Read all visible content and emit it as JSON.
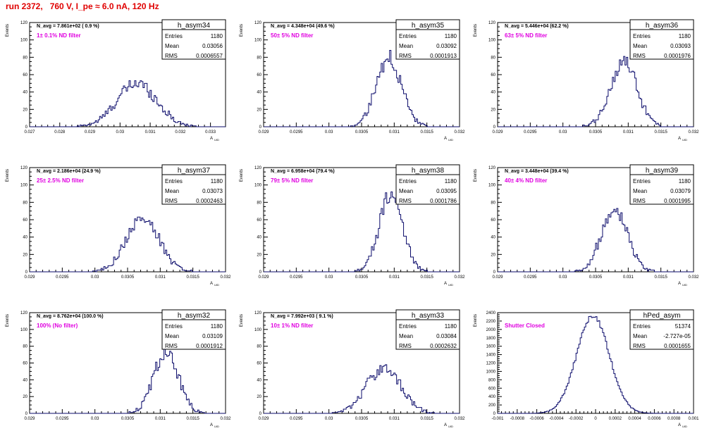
{
  "title": "run 2372,   760 V, I_pe ≈ 6.0 nA, 120 Hz",
  "stats_labels": {
    "entries": "Entries",
    "mean": "Mean",
    "rms": "RMS"
  },
  "colors": {
    "hist": "#0b0b6b",
    "filter_text": "#e000e0",
    "title": "#e00000"
  },
  "chart_data": [
    {
      "type": "histogram",
      "name": "h_asym34",
      "navg": "N_avg = 7.861e+02 ( 0.9 %)",
      "filter": "1± 0.1% ND filter",
      "entries": "1180",
      "mean": "0.03056",
      "rms": "0.0006557",
      "xlabel": "A_UID",
      "ylabel": "Events",
      "xlim": [
        0.027,
        0.0335
      ],
      "ylim": [
        0,
        120
      ],
      "xticks": [
        "0.027",
        "0.028",
        "0.029",
        "0.03",
        "0.031",
        "0.032",
        "0.033"
      ],
      "xtick_values": [
        0.027,
        0.028,
        0.029,
        0.03,
        0.031,
        0.032,
        0.033
      ],
      "yticks": [
        0,
        20,
        40,
        60,
        80,
        100,
        120
      ],
      "center": 0.03056,
      "sigma": 0.00066,
      "peak": 50
    },
    {
      "type": "histogram",
      "name": "h_asym35",
      "navg": "N_avg = 4.348e+04 (49.6 %)",
      "filter": "50± 5% ND filter",
      "entries": "1180",
      "mean": "0.03092",
      "rms": "0.0001913",
      "xlabel": "A_UID",
      "ylabel": "Events",
      "xlim": [
        0.029,
        0.032
      ],
      "ylim": [
        0,
        120
      ],
      "xticks": [
        "0.029",
        "0.0295",
        "0.03",
        "0.0305",
        "0.031",
        "0.0315",
        "0.032"
      ],
      "xtick_values": [
        0.029,
        0.0295,
        0.03,
        0.0305,
        0.031,
        0.0315,
        0.032
      ],
      "yticks": [
        0,
        20,
        40,
        60,
        80,
        100,
        120
      ],
      "center": 0.03092,
      "sigma": 0.00019,
      "peak": 80
    },
    {
      "type": "histogram",
      "name": "h_asym36",
      "navg": "N_avg = 5.446e+04 (62.2 %)",
      "filter": "63± 5% ND filter",
      "entries": "1180",
      "mean": "0.03093",
      "rms": "0.0001976",
      "xlabel": "A_UID",
      "ylabel": "Events",
      "xlim": [
        0.029,
        0.032
      ],
      "ylim": [
        0,
        120
      ],
      "xticks": [
        "0.029",
        "0.0295",
        "0.03",
        "0.0305",
        "0.031",
        "0.0315",
        "0.032"
      ],
      "xtick_values": [
        0.029,
        0.0295,
        0.03,
        0.0305,
        0.031,
        0.0315,
        0.032
      ],
      "yticks": [
        0,
        20,
        40,
        60,
        80,
        100,
        120
      ],
      "center": 0.03093,
      "sigma": 0.0002,
      "peak": 75
    },
    {
      "type": "histogram",
      "name": "h_asym37",
      "navg": "N_avg = 2.186e+04 (24.9 %)",
      "filter": "25± 2.5% ND filter",
      "entries": "1180",
      "mean": "0.03073",
      "rms": "0.0002463",
      "xlabel": "A_UID",
      "ylabel": "Events",
      "xlim": [
        0.029,
        0.032
      ],
      "ylim": [
        0,
        120
      ],
      "xticks": [
        "0.029",
        "0.0295",
        "0.03",
        "0.0305",
        "0.031",
        "0.0315",
        "0.032"
      ],
      "xtick_values": [
        0.029,
        0.0295,
        0.03,
        0.0305,
        0.031,
        0.0315,
        0.032
      ],
      "yticks": [
        0,
        20,
        40,
        60,
        80,
        100,
        120
      ],
      "center": 0.03073,
      "sigma": 0.00025,
      "peak": 62
    },
    {
      "type": "histogram",
      "name": "h_asym38",
      "navg": "N_avg = 6.958e+04 (79.4 %)",
      "filter": "79± 5% ND filter",
      "entries": "1180",
      "mean": "0.03095",
      "rms": "0.0001786",
      "xlabel": "A_UID",
      "ylabel": "Events",
      "xlim": [
        0.029,
        0.032
      ],
      "ylim": [
        0,
        120
      ],
      "xticks": [
        "0.029",
        "0.0295",
        "0.03",
        "0.0305",
        "0.031",
        "0.0315",
        "0.032"
      ],
      "xtick_values": [
        0.029,
        0.0295,
        0.03,
        0.0305,
        0.031,
        0.0315,
        0.032
      ],
      "yticks": [
        0,
        20,
        40,
        60,
        80,
        100,
        120
      ],
      "center": 0.03095,
      "sigma": 0.00018,
      "peak": 88
    },
    {
      "type": "histogram",
      "name": "h_asym39",
      "navg": "N_avg = 3.448e+04 (39.4 %)",
      "filter": "40± 4% ND filter",
      "entries": "1180",
      "mean": "0.03079",
      "rms": "0.0001995",
      "xlabel": "A_UID",
      "ylabel": "Events",
      "xlim": [
        0.029,
        0.032
      ],
      "ylim": [
        0,
        120
      ],
      "xticks": [
        "0.029",
        "0.0295",
        "0.03",
        "0.0305",
        "0.031",
        "0.0315",
        "0.032"
      ],
      "xtick_values": [
        0.029,
        0.0295,
        0.03,
        0.0305,
        0.031,
        0.0315,
        0.032
      ],
      "yticks": [
        0,
        20,
        40,
        60,
        80,
        100,
        120
      ],
      "center": 0.03079,
      "sigma": 0.0002,
      "peak": 74
    },
    {
      "type": "histogram",
      "name": "h_asym32",
      "navg": "N_avg = 8.762e+04 (100.0 %)",
      "filter": "100% (No filter)",
      "entries": "1180",
      "mean": "0.03109",
      "rms": "0.0001912",
      "xlabel": "A_UID",
      "ylabel": "Events",
      "xlim": [
        0.029,
        0.032
      ],
      "ylim": [
        0,
        120
      ],
      "xticks": [
        "0.029",
        "0.0295",
        "0.03",
        "0.0305",
        "0.031",
        "0.0315",
        "0.032"
      ],
      "xtick_values": [
        0.029,
        0.0295,
        0.03,
        0.0305,
        0.031,
        0.0315,
        0.032
      ],
      "yticks": [
        0,
        20,
        40,
        60,
        80,
        100,
        120
      ],
      "center": 0.03109,
      "sigma": 0.00019,
      "peak": 73
    },
    {
      "type": "histogram",
      "name": "h_asym33",
      "navg": "N_avg = 7.992e+03 ( 9.1 %)",
      "filter": "10± 1% ND filter",
      "entries": "1180",
      "mean": "0.03084",
      "rms": "0.0002632",
      "xlabel": "A_UID",
      "ylabel": "Events",
      "xlim": [
        0.029,
        0.032
      ],
      "ylim": [
        0,
        120
      ],
      "xticks": [
        "0.029",
        "0.0295",
        "0.03",
        "0.0305",
        "0.031",
        "0.0315",
        "0.032"
      ],
      "xtick_values": [
        0.029,
        0.0295,
        0.03,
        0.0305,
        0.031,
        0.0315,
        0.032
      ],
      "yticks": [
        0,
        20,
        40,
        60,
        80,
        100,
        120
      ],
      "center": 0.03084,
      "sigma": 0.00026,
      "peak": 55
    },
    {
      "type": "histogram",
      "name": "hPed_asym",
      "navg": "",
      "filter": "Shutter Closed",
      "entries": "51374",
      "mean": "-2.727e-05",
      "rms": "0.0001655",
      "xlabel": "A_UID",
      "ylabel": "Events",
      "xlim": [
        -0.001,
        0.001
      ],
      "ylim": [
        0,
        2400
      ],
      "xticks": [
        "-0.001",
        "-0.0008",
        "-0.0006",
        "-0.0004",
        "-0.0002",
        "0",
        "0.0002",
        "0.0004",
        "0.0006",
        "0.0008",
        "0.001"
      ],
      "xtick_values": [
        -0.001,
        -0.0008,
        -0.0006,
        -0.0004,
        -0.0002,
        0,
        0.0002,
        0.0004,
        0.0006,
        0.0008,
        0.001
      ],
      "yticks": [
        0,
        200,
        400,
        600,
        800,
        1000,
        1200,
        1400,
        1600,
        1800,
        2000,
        2200,
        2400
      ],
      "center": -2.7e-05,
      "sigma": 0.000166,
      "peak": 2330
    }
  ]
}
